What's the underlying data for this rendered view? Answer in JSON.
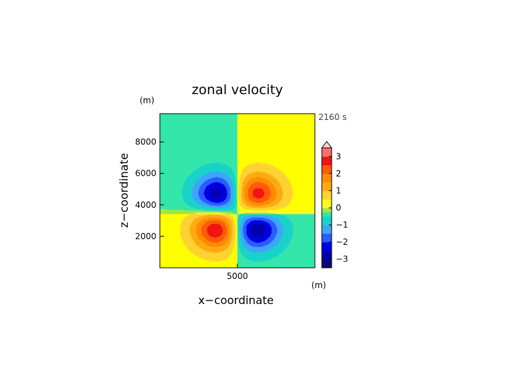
{
  "chart_data": {
    "type": "heatmap",
    "title": "zonal velocity",
    "xlabel": "x−coordinate",
    "ylabel": "z−coordinate",
    "x_unit": "(m)",
    "y_unit": "(m)",
    "time_label": "2160 s",
    "xlim": [
      0,
      10000
    ],
    "ylim": [
      0,
      9800
    ],
    "xticks": [
      {
        "value": 5000,
        "label": "5000"
      }
    ],
    "yticks": [
      {
        "value": 2000,
        "label": "2000"
      },
      {
        "value": 4000,
        "label": "4000"
      },
      {
        "value": 6000,
        "label": "6000"
      },
      {
        "value": 8000,
        "label": "8000"
      }
    ],
    "background_field": {
      "upper_left": -0.25,
      "upper_right": 0.25,
      "lower_left": 0.25,
      "lower_right": -0.25,
      "split_x": 5000,
      "split_z": 3400
    },
    "features": [
      {
        "x": 3900,
        "z": 4500,
        "amplitude": -3.2
      },
      {
        "x": 6100,
        "z": 4500,
        "amplitude": 3.2
      },
      {
        "x": 3800,
        "z": 2600,
        "amplitude": 3.3
      },
      {
        "x": 6100,
        "z": 2600,
        "amplitude": -3.3
      }
    ],
    "colorbar": {
      "min": -3.5,
      "max": 3.5,
      "step": 0.25,
      "tick_values": [
        3,
        2,
        1,
        0,
        -1,
        -2,
        -3
      ],
      "tick_labels": [
        "3",
        "2",
        "1",
        "0",
        "−1",
        "−2",
        "−3"
      ],
      "stops": [
        {
          "value": -3.5,
          "color": "#0a0a7a"
        },
        {
          "value": -3.0,
          "color": "#0000b0"
        },
        {
          "value": -2.5,
          "color": "#0000e0"
        },
        {
          "value": -2.0,
          "color": "#2a5cff"
        },
        {
          "value": -1.5,
          "color": "#3fa4ff"
        },
        {
          "value": -1.0,
          "color": "#19d2c8"
        },
        {
          "value": -0.5,
          "color": "#34e6aa"
        },
        {
          "value": -0.25,
          "color": "#a6e63c"
        },
        {
          "value": 0.0,
          "color": "#f6f63c"
        },
        {
          "value": 0.25,
          "color": "#ffff00"
        },
        {
          "value": 0.5,
          "color": "#ffd232"
        },
        {
          "value": 1.0,
          "color": "#ffaa14"
        },
        {
          "value": 1.5,
          "color": "#ff8c00"
        },
        {
          "value": 2.0,
          "color": "#ff5a0a"
        },
        {
          "value": 2.5,
          "color": "#f01414"
        },
        {
          "value": 3.0,
          "color": "#ff6e6e"
        },
        {
          "value": 3.5,
          "color": "#ffb0b0"
        }
      ],
      "extend_top_color": "#ffd8d8"
    }
  }
}
